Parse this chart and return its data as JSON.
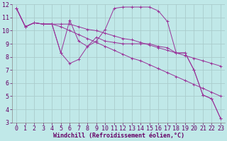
{
  "xlabel": "Windchill (Refroidissement éolien,°C)",
  "ylabel": "",
  "xlim": [
    -0.5,
    23.5
  ],
  "ylim": [
    3,
    12
  ],
  "bg_color": "#c0e8e8",
  "line_color": "#993399",
  "grid_color": "#aacccc",
  "lines": [
    [
      11.7,
      10.3,
      10.6,
      10.5,
      10.5,
      8.3,
      7.5,
      7.8,
      8.8,
      9.2,
      10.1,
      11.7,
      11.8,
      11.8,
      11.8,
      11.8,
      11.5,
      10.7,
      8.3,
      8.3,
      7.0,
      5.1,
      4.8,
      3.3
    ],
    [
      11.7,
      10.3,
      10.6,
      10.5,
      10.5,
      8.3,
      10.8,
      9.2,
      8.8,
      9.5,
      9.2,
      9.1,
      9.0,
      9.0,
      9.0,
      9.0,
      8.8,
      8.7,
      8.3,
      8.3,
      7.0,
      5.1,
      4.8,
      3.3
    ],
    [
      11.7,
      10.3,
      10.6,
      10.5,
      10.5,
      10.5,
      10.5,
      10.3,
      10.1,
      10.0,
      9.8,
      9.6,
      9.4,
      9.3,
      9.1,
      8.9,
      8.7,
      8.5,
      8.3,
      8.1,
      7.9,
      7.7,
      7.5,
      7.3
    ],
    [
      11.7,
      10.3,
      10.6,
      10.5,
      10.5,
      10.3,
      10.0,
      9.7,
      9.4,
      9.1,
      8.8,
      8.5,
      8.2,
      7.9,
      7.7,
      7.4,
      7.1,
      6.8,
      6.5,
      6.2,
      5.9,
      5.6,
      5.3,
      5.0
    ]
  ],
  "xtick_labels": [
    "0",
    "1",
    "2",
    "3",
    "4",
    "5",
    "6",
    "7",
    "8",
    "9",
    "10",
    "11",
    "12",
    "13",
    "14",
    "15",
    "16",
    "17",
    "18",
    "19",
    "20",
    "21",
    "22",
    "23"
  ],
  "ytick_labels": [
    "3",
    "4",
    "5",
    "6",
    "7",
    "8",
    "9",
    "10",
    "11",
    "12"
  ],
  "tick_fontsize": 6,
  "xlabel_fontsize": 6
}
